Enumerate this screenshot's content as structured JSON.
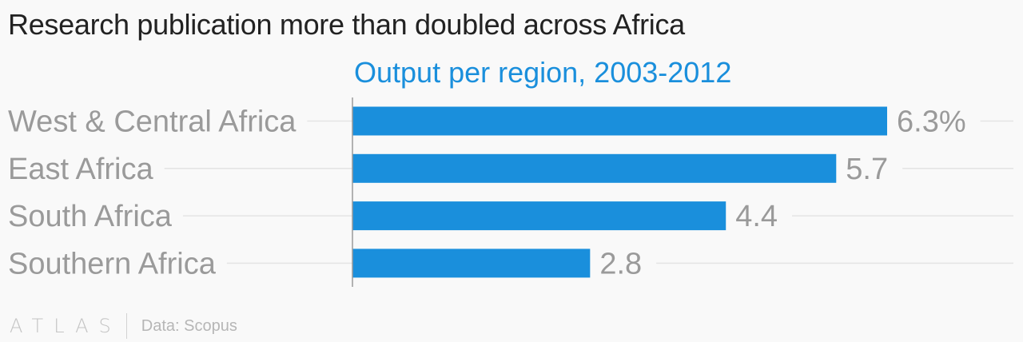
{
  "header": {
    "title": "Research publication more than doubled across Africa"
  },
  "chart_data": {
    "type": "bar",
    "orientation": "horizontal",
    "subtitle": "Output per region, 2003-2012",
    "categories": [
      "West & Central Africa",
      "East Africa",
      "South Africa",
      "Southern Africa"
    ],
    "values": [
      6.3,
      5.7,
      4.4,
      2.8
    ],
    "value_labels": [
      "6.3%",
      "5.7",
      "4.4",
      "2.8"
    ],
    "xlim": [
      0,
      6.3
    ],
    "grid": true,
    "colors": {
      "bar": "#1a8fdc",
      "subtitle": "#1a8fdc",
      "category_label": "#9a9a9a",
      "value_label": "#9a9a9a",
      "grid": "#e4e4e4",
      "axis": "#9a9a9a"
    }
  },
  "footer": {
    "logo_text": "ATLAS",
    "source": "Data: Scopus"
  }
}
